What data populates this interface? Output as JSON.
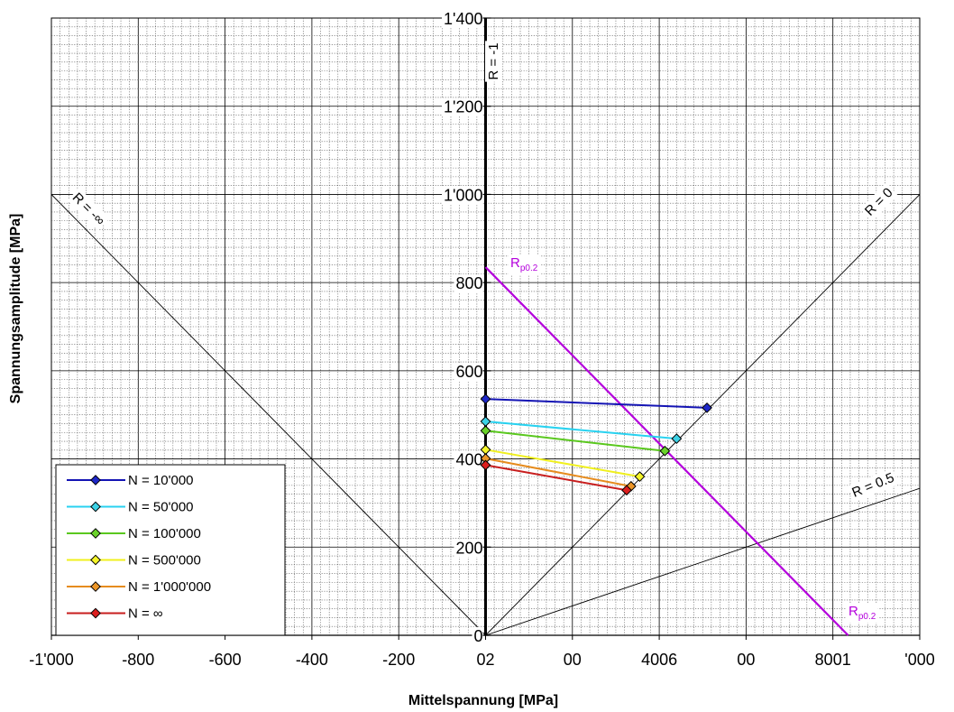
{
  "chart_data": {
    "type": "line",
    "xlabel": "Mittelspannung [MPa]",
    "ylabel": "Spannungsamplitude [MPa]",
    "xlim": [
      -1000,
      1000
    ],
    "ylim": [
      0,
      1400
    ],
    "x_tick_labels": [
      "-1'000",
      "-800",
      "-600",
      "-400",
      "-200",
      "02",
      "00",
      "4006",
      "00",
      "8001",
      "'000"
    ],
    "y_tick_labels": [
      "0",
      "200",
      "400",
      "600",
      "800",
      "1'000",
      "1'200",
      "1'400"
    ],
    "grid": true,
    "legend_position": "bottom-left",
    "series": [
      {
        "name": "N = 10'000",
        "color": "#1414b4",
        "marker_color": "#1e28c8",
        "x": [
          0,
          510
        ],
        "y": [
          536,
          516
        ]
      },
      {
        "name": "N = 50'000",
        "color": "#28d2f0",
        "marker_color": "#3cd2e6",
        "x": [
          0,
          440
        ],
        "y": [
          485,
          446
        ]
      },
      {
        "name": "N = 100'000",
        "color": "#5ac81e",
        "marker_color": "#6ad22a",
        "x": [
          0,
          413
        ],
        "y": [
          464,
          418
        ]
      },
      {
        "name": "N = 500'000",
        "color": "#f0f01e",
        "marker_color": "#f5f528",
        "x": [
          0,
          355
        ],
        "y": [
          421,
          360
        ]
      },
      {
        "name": "N = 1'000'000",
        "color": "#e68c1e",
        "marker_color": "#ec9628",
        "x": [
          0,
          335
        ],
        "y": [
          401,
          338
        ]
      },
      {
        "name": "N = ∞",
        "color": "#c81e1e",
        "marker_color": "#dc1e1e",
        "x": [
          0,
          325
        ],
        "y": [
          386,
          329
        ]
      }
    ],
    "reference_lines": [
      {
        "label": "R = -∞",
        "x": [
          -1000,
          0
        ],
        "y": [
          1000,
          0
        ]
      },
      {
        "label": "R = -1",
        "x": [
          0,
          0
        ],
        "y": [
          0,
          1400
        ]
      },
      {
        "label": "R = 0",
        "x": [
          0,
          1000
        ],
        "y": [
          0,
          1000
        ]
      },
      {
        "label": "R = 0.5",
        "x": [
          0,
          1000
        ],
        "y": [
          0,
          333.3
        ]
      }
    ],
    "yield_line": {
      "label_main": "R",
      "label_sub": "p0.2",
      "color": "#b400dc",
      "x": [
        0,
        835
      ],
      "y": [
        835,
        0
      ]
    }
  }
}
